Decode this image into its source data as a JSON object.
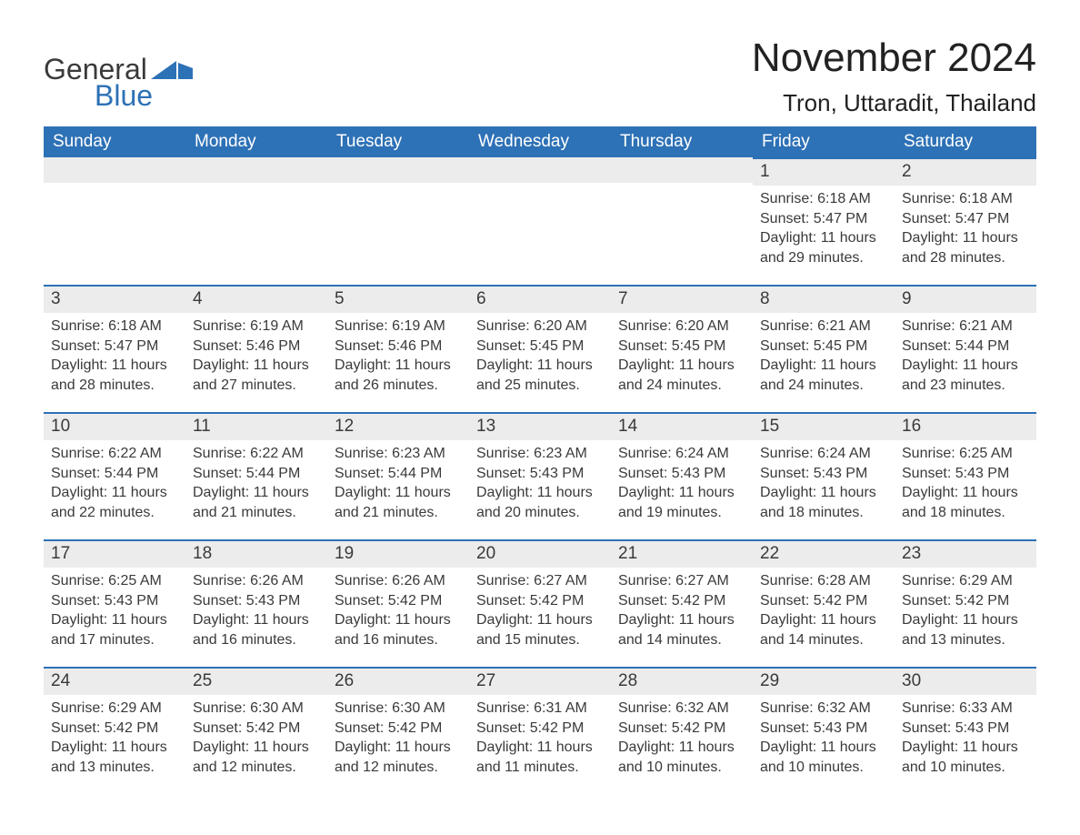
{
  "brand": {
    "general": "General",
    "blue": "Blue",
    "flag_color": "#2d71b6"
  },
  "title": "November 2024",
  "location": "Tron, Uttaradit, Thailand",
  "colors": {
    "header_bg": "#2d71b6",
    "header_text": "#ffffff",
    "day_bar_bg": "#ececec",
    "day_bar_border": "#2d71b6",
    "body_text": "#3a3a3a",
    "page_bg": "#ffffff"
  },
  "weekdays": [
    "Sunday",
    "Monday",
    "Tuesday",
    "Wednesday",
    "Thursday",
    "Friday",
    "Saturday"
  ],
  "weeks": [
    [
      null,
      null,
      null,
      null,
      null,
      {
        "day": "1",
        "sunrise": "Sunrise: 6:18 AM",
        "sunset": "Sunset: 5:47 PM",
        "daylight1": "Daylight: 11 hours",
        "daylight2": "and 29 minutes."
      },
      {
        "day": "2",
        "sunrise": "Sunrise: 6:18 AM",
        "sunset": "Sunset: 5:47 PM",
        "daylight1": "Daylight: 11 hours",
        "daylight2": "and 28 minutes."
      }
    ],
    [
      {
        "day": "3",
        "sunrise": "Sunrise: 6:18 AM",
        "sunset": "Sunset: 5:47 PM",
        "daylight1": "Daylight: 11 hours",
        "daylight2": "and 28 minutes."
      },
      {
        "day": "4",
        "sunrise": "Sunrise: 6:19 AM",
        "sunset": "Sunset: 5:46 PM",
        "daylight1": "Daylight: 11 hours",
        "daylight2": "and 27 minutes."
      },
      {
        "day": "5",
        "sunrise": "Sunrise: 6:19 AM",
        "sunset": "Sunset: 5:46 PM",
        "daylight1": "Daylight: 11 hours",
        "daylight2": "and 26 minutes."
      },
      {
        "day": "6",
        "sunrise": "Sunrise: 6:20 AM",
        "sunset": "Sunset: 5:45 PM",
        "daylight1": "Daylight: 11 hours",
        "daylight2": "and 25 minutes."
      },
      {
        "day": "7",
        "sunrise": "Sunrise: 6:20 AM",
        "sunset": "Sunset: 5:45 PM",
        "daylight1": "Daylight: 11 hours",
        "daylight2": "and 24 minutes."
      },
      {
        "day": "8",
        "sunrise": "Sunrise: 6:21 AM",
        "sunset": "Sunset: 5:45 PM",
        "daylight1": "Daylight: 11 hours",
        "daylight2": "and 24 minutes."
      },
      {
        "day": "9",
        "sunrise": "Sunrise: 6:21 AM",
        "sunset": "Sunset: 5:44 PM",
        "daylight1": "Daylight: 11 hours",
        "daylight2": "and 23 minutes."
      }
    ],
    [
      {
        "day": "10",
        "sunrise": "Sunrise: 6:22 AM",
        "sunset": "Sunset: 5:44 PM",
        "daylight1": "Daylight: 11 hours",
        "daylight2": "and 22 minutes."
      },
      {
        "day": "11",
        "sunrise": "Sunrise: 6:22 AM",
        "sunset": "Sunset: 5:44 PM",
        "daylight1": "Daylight: 11 hours",
        "daylight2": "and 21 minutes."
      },
      {
        "day": "12",
        "sunrise": "Sunrise: 6:23 AM",
        "sunset": "Sunset: 5:44 PM",
        "daylight1": "Daylight: 11 hours",
        "daylight2": "and 21 minutes."
      },
      {
        "day": "13",
        "sunrise": "Sunrise: 6:23 AM",
        "sunset": "Sunset: 5:43 PM",
        "daylight1": "Daylight: 11 hours",
        "daylight2": "and 20 minutes."
      },
      {
        "day": "14",
        "sunrise": "Sunrise: 6:24 AM",
        "sunset": "Sunset: 5:43 PM",
        "daylight1": "Daylight: 11 hours",
        "daylight2": "and 19 minutes."
      },
      {
        "day": "15",
        "sunrise": "Sunrise: 6:24 AM",
        "sunset": "Sunset: 5:43 PM",
        "daylight1": "Daylight: 11 hours",
        "daylight2": "and 18 minutes."
      },
      {
        "day": "16",
        "sunrise": "Sunrise: 6:25 AM",
        "sunset": "Sunset: 5:43 PM",
        "daylight1": "Daylight: 11 hours",
        "daylight2": "and 18 minutes."
      }
    ],
    [
      {
        "day": "17",
        "sunrise": "Sunrise: 6:25 AM",
        "sunset": "Sunset: 5:43 PM",
        "daylight1": "Daylight: 11 hours",
        "daylight2": "and 17 minutes."
      },
      {
        "day": "18",
        "sunrise": "Sunrise: 6:26 AM",
        "sunset": "Sunset: 5:43 PM",
        "daylight1": "Daylight: 11 hours",
        "daylight2": "and 16 minutes."
      },
      {
        "day": "19",
        "sunrise": "Sunrise: 6:26 AM",
        "sunset": "Sunset: 5:42 PM",
        "daylight1": "Daylight: 11 hours",
        "daylight2": "and 16 minutes."
      },
      {
        "day": "20",
        "sunrise": "Sunrise: 6:27 AM",
        "sunset": "Sunset: 5:42 PM",
        "daylight1": "Daylight: 11 hours",
        "daylight2": "and 15 minutes."
      },
      {
        "day": "21",
        "sunrise": "Sunrise: 6:27 AM",
        "sunset": "Sunset: 5:42 PM",
        "daylight1": "Daylight: 11 hours",
        "daylight2": "and 14 minutes."
      },
      {
        "day": "22",
        "sunrise": "Sunrise: 6:28 AM",
        "sunset": "Sunset: 5:42 PM",
        "daylight1": "Daylight: 11 hours",
        "daylight2": "and 14 minutes."
      },
      {
        "day": "23",
        "sunrise": "Sunrise: 6:29 AM",
        "sunset": "Sunset: 5:42 PM",
        "daylight1": "Daylight: 11 hours",
        "daylight2": "and 13 minutes."
      }
    ],
    [
      {
        "day": "24",
        "sunrise": "Sunrise: 6:29 AM",
        "sunset": "Sunset: 5:42 PM",
        "daylight1": "Daylight: 11 hours",
        "daylight2": "and 13 minutes."
      },
      {
        "day": "25",
        "sunrise": "Sunrise: 6:30 AM",
        "sunset": "Sunset: 5:42 PM",
        "daylight1": "Daylight: 11 hours",
        "daylight2": "and 12 minutes."
      },
      {
        "day": "26",
        "sunrise": "Sunrise: 6:30 AM",
        "sunset": "Sunset: 5:42 PM",
        "daylight1": "Daylight: 11 hours",
        "daylight2": "and 12 minutes."
      },
      {
        "day": "27",
        "sunrise": "Sunrise: 6:31 AM",
        "sunset": "Sunset: 5:42 PM",
        "daylight1": "Daylight: 11 hours",
        "daylight2": "and 11 minutes."
      },
      {
        "day": "28",
        "sunrise": "Sunrise: 6:32 AM",
        "sunset": "Sunset: 5:42 PM",
        "daylight1": "Daylight: 11 hours",
        "daylight2": "and 10 minutes."
      },
      {
        "day": "29",
        "sunrise": "Sunrise: 6:32 AM",
        "sunset": "Sunset: 5:43 PM",
        "daylight1": "Daylight: 11 hours",
        "daylight2": "and 10 minutes."
      },
      {
        "day": "30",
        "sunrise": "Sunrise: 6:33 AM",
        "sunset": "Sunset: 5:43 PM",
        "daylight1": "Daylight: 11 hours",
        "daylight2": "and 10 minutes."
      }
    ]
  ]
}
